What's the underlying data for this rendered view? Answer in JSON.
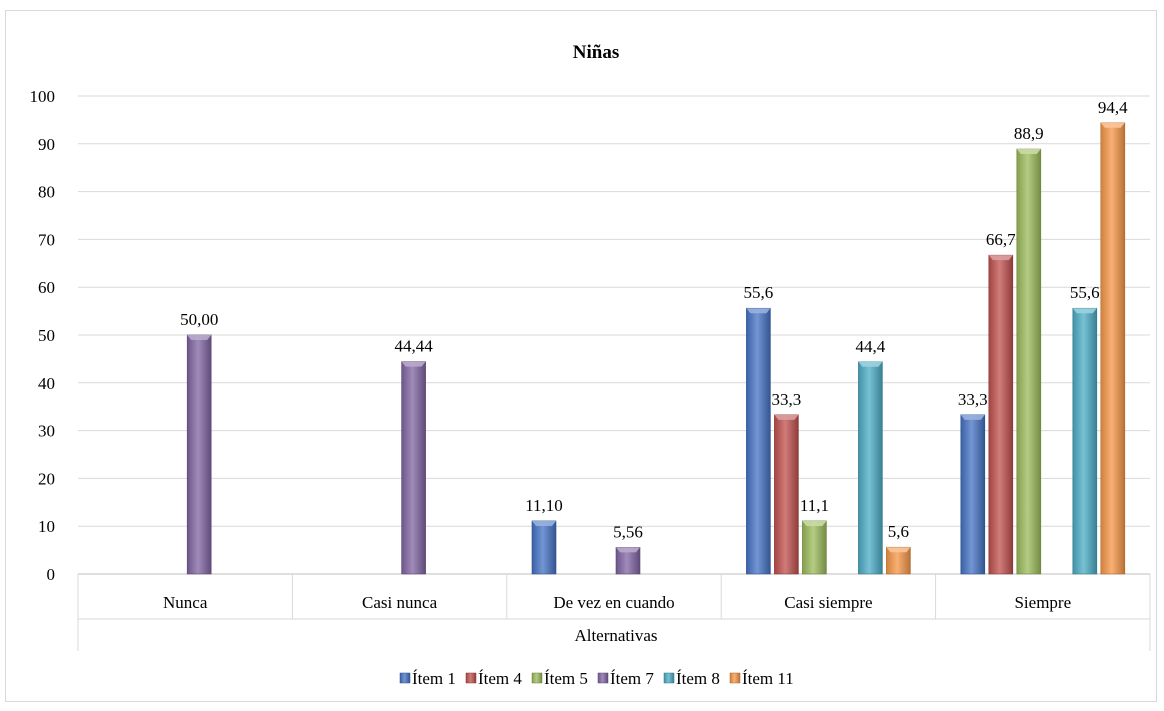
{
  "chart_data": {
    "type": "bar",
    "title": "Niñas",
    "xlabel": "Alternativas",
    "ylabel": "",
    "ylim": [
      0,
      100
    ],
    "yticks": [
      0,
      10,
      20,
      30,
      40,
      50,
      60,
      70,
      80,
      90,
      100
    ],
    "grid": true,
    "legend_position": "bottom",
    "categories": [
      "Nunca",
      "Casi nunca",
      "De vez en cuando",
      "Casi siempre",
      "Siempre"
    ],
    "series": [
      {
        "name": "Ítem 1",
        "color": "#4472c4",
        "values": [
          null,
          null,
          11.1,
          55.6,
          33.3
        ],
        "labels": [
          "",
          "",
          "11,10",
          "55,6",
          "33,3"
        ]
      },
      {
        "name": "Ítem 4",
        "color": "#c0504d",
        "values": [
          null,
          null,
          null,
          33.3,
          66.7
        ],
        "labels": [
          "",
          "",
          "",
          "33,3",
          "66,7"
        ]
      },
      {
        "name": "Ítem 5",
        "color": "#9bbb59",
        "values": [
          null,
          null,
          null,
          11.1,
          88.9
        ],
        "labels": [
          "",
          "",
          "",
          "11,1",
          "88,9"
        ]
      },
      {
        "name": "Ítem 7",
        "color": "#8064a2",
        "values": [
          50.0,
          44.44,
          5.56,
          null,
          null
        ],
        "labels": [
          "50,00",
          "44,44",
          "5,56",
          "",
          ""
        ]
      },
      {
        "name": "Ítem 8",
        "color": "#4bacc6",
        "values": [
          null,
          null,
          null,
          44.4,
          55.6
        ],
        "labels": [
          "",
          "",
          "",
          "44,4",
          "55,6"
        ]
      },
      {
        "name": "Ítem 11",
        "color": "#f79646",
        "values": [
          null,
          null,
          null,
          5.6,
          94.4
        ],
        "labels": [
          "",
          "",
          "",
          "5,6",
          "94,4"
        ]
      }
    ]
  }
}
